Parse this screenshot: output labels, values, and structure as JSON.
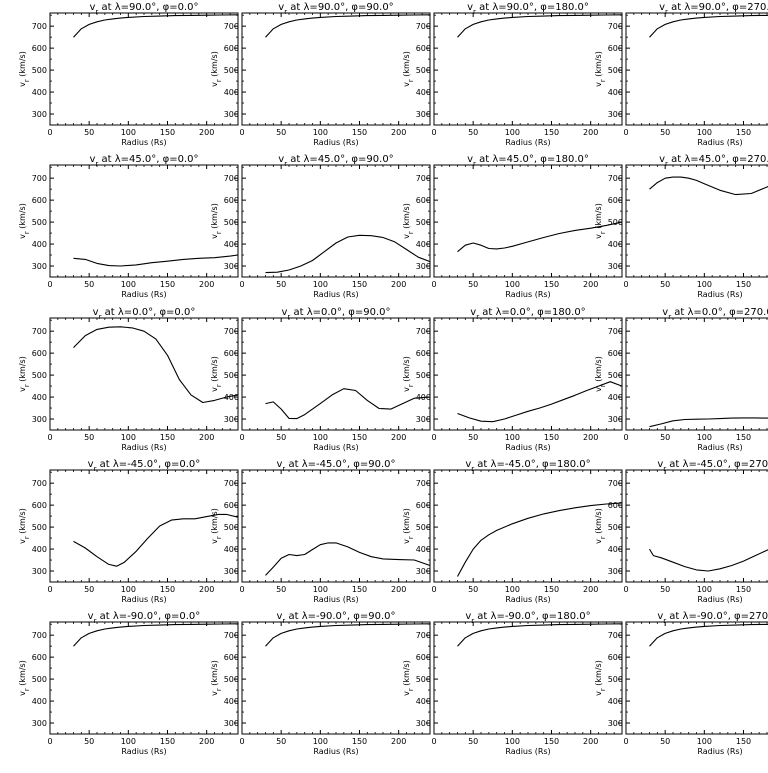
{
  "chart_data": [
    {
      "type": "line",
      "title_html": "v<tspan baseline-shift=\"sub\" font-size=\"7\">r</tspan> at λ=90.0°, φ=0.0°",
      "title": "v_r at λ=90.0°, φ=0.0°",
      "xlabel": "Radius (Rs)",
      "ylabel": "v_r (km/s)",
      "xlim": [
        0,
        240
      ],
      "ylim": [
        250,
        760
      ],
      "xticks": [
        0,
        50,
        100,
        150,
        200
      ],
      "yticks": [
        300,
        400,
        500,
        600,
        700
      ],
      "x": [
        30,
        40,
        50,
        60,
        70,
        80,
        90,
        100,
        120,
        140,
        160,
        180,
        200,
        220,
        240
      ],
      "y": [
        650,
        688,
        708,
        720,
        728,
        733,
        737,
        740,
        744,
        746,
        748,
        749,
        750,
        751,
        752
      ]
    },
    {
      "type": "line",
      "title": "v_r at λ=90.0°, φ=90.0°",
      "xlabel": "Radius (Rs)",
      "ylabel": "v_r (km/s)",
      "xlim": [
        0,
        240
      ],
      "ylim": [
        250,
        760
      ],
      "xticks": [
        0,
        50,
        100,
        150,
        200
      ],
      "yticks": [
        300,
        400,
        500,
        600,
        700
      ],
      "x": [
        30,
        40,
        50,
        60,
        70,
        80,
        90,
        100,
        120,
        140,
        160,
        180,
        200,
        220,
        240
      ],
      "y": [
        650,
        688,
        708,
        720,
        728,
        733,
        737,
        740,
        744,
        746,
        748,
        749,
        750,
        751,
        752
      ]
    },
    {
      "type": "line",
      "title": "v_r at λ=90.0°, φ=180.0°",
      "xlabel": "Radius (Rs)",
      "ylabel": "v_r (km/s)",
      "xlim": [
        0,
        240
      ],
      "ylim": [
        250,
        760
      ],
      "xticks": [
        0,
        50,
        100,
        150,
        200
      ],
      "yticks": [
        300,
        400,
        500,
        600,
        700
      ],
      "x": [
        30,
        40,
        50,
        60,
        70,
        80,
        90,
        100,
        120,
        140,
        160,
        180,
        200,
        220,
        240
      ],
      "y": [
        650,
        688,
        708,
        720,
        728,
        733,
        737,
        740,
        744,
        746,
        748,
        749,
        750,
        751,
        752
      ]
    },
    {
      "type": "line",
      "title": "v_r at λ=90.0°, φ=270.0°",
      "xlabel": "Radius (Rs)",
      "ylabel": "v_r (km/s)",
      "xlim": [
        0,
        240
      ],
      "ylim": [
        250,
        760
      ],
      "xticks": [
        0,
        50,
        100,
        150,
        200
      ],
      "yticks": [
        300,
        400,
        500,
        600,
        700
      ],
      "x": [
        30,
        40,
        50,
        60,
        70,
        80,
        90,
        100,
        120,
        140,
        160,
        180,
        200,
        220,
        240
      ],
      "y": [
        650,
        688,
        708,
        720,
        728,
        733,
        737,
        740,
        744,
        746,
        748,
        749,
        750,
        751,
        752
      ]
    },
    {
      "type": "line",
      "title": "v_r at λ=45.0°, φ=0.0°",
      "xlabel": "Radius (Rs)",
      "ylabel": "v_r (km/s)",
      "xlim": [
        0,
        240
      ],
      "ylim": [
        250,
        760
      ],
      "xticks": [
        0,
        50,
        100,
        150,
        200
      ],
      "yticks": [
        300,
        400,
        500,
        600,
        700
      ],
      "x": [
        30,
        45,
        60,
        75,
        90,
        110,
        130,
        150,
        170,
        190,
        210,
        230,
        240
      ],
      "y": [
        335,
        330,
        312,
        302,
        300,
        305,
        315,
        322,
        330,
        335,
        338,
        345,
        350
      ]
    },
    {
      "type": "line",
      "title": "v_r at λ=45.0°, φ=90.0°",
      "xlabel": "Radius (Rs)",
      "ylabel": "v_r (km/s)",
      "xlim": [
        0,
        240
      ],
      "ylim": [
        250,
        760
      ],
      "xticks": [
        0,
        50,
        100,
        150,
        200
      ],
      "yticks": [
        300,
        400,
        500,
        600,
        700
      ],
      "x": [
        30,
        45,
        60,
        75,
        90,
        105,
        120,
        135,
        150,
        165,
        180,
        195,
        210,
        225,
        240
      ],
      "y": [
        270,
        272,
        282,
        300,
        325,
        365,
        405,
        432,
        440,
        438,
        430,
        410,
        375,
        340,
        320
      ]
    },
    {
      "type": "line",
      "title": "v_r at λ=45.0°, φ=180.0°",
      "xlabel": "Radius (Rs)",
      "ylabel": "v_r (km/s)",
      "xlim": [
        0,
        240
      ],
      "ylim": [
        250,
        760
      ],
      "xticks": [
        0,
        50,
        100,
        150,
        200
      ],
      "yticks": [
        300,
        400,
        500,
        600,
        700
      ],
      "x": [
        30,
        40,
        50,
        60,
        70,
        80,
        90,
        100,
        120,
        140,
        160,
        180,
        200,
        220,
        240
      ],
      "y": [
        365,
        395,
        405,
        395,
        380,
        378,
        382,
        390,
        410,
        430,
        448,
        462,
        472,
        485,
        500
      ]
    },
    {
      "type": "line",
      "title": "v_r at λ=45.0°, φ=270.0°",
      "xlabel": "Radius (Rs)",
      "ylabel": "v_r (km/s)",
      "xlim": [
        0,
        240
      ],
      "ylim": [
        250,
        760
      ],
      "xticks": [
        0,
        50,
        100,
        150,
        200
      ],
      "yticks": [
        300,
        400,
        500,
        600,
        700
      ],
      "x": [
        30,
        40,
        50,
        60,
        70,
        80,
        90,
        100,
        120,
        140,
        160,
        180,
        200,
        220,
        240
      ],
      "y": [
        650,
        680,
        700,
        705,
        705,
        700,
        690,
        675,
        645,
        625,
        630,
        660,
        695,
        720,
        735
      ]
    },
    {
      "type": "line",
      "title": "v_r at λ=0.0°, φ=0.0°",
      "xlabel": "Radius (Rs)",
      "ylabel": "v_r (km/s)",
      "xlim": [
        0,
        240
      ],
      "ylim": [
        250,
        760
      ],
      "xticks": [
        0,
        50,
        100,
        150,
        200
      ],
      "yticks": [
        300,
        400,
        500,
        600,
        700
      ],
      "x": [
        30,
        45,
        60,
        75,
        90,
        105,
        120,
        135,
        150,
        165,
        180,
        195,
        210,
        225,
        240
      ],
      "y": [
        625,
        680,
        708,
        718,
        720,
        715,
        700,
        665,
        590,
        480,
        410,
        375,
        385,
        400,
        410
      ]
    },
    {
      "type": "line",
      "title": "v_r at λ=0.0°, φ=90.0°",
      "xlabel": "Radius (Rs)",
      "ylabel": "v_r (km/s)",
      "xlim": [
        0,
        240
      ],
      "ylim": [
        250,
        760
      ],
      "xticks": [
        0,
        50,
        100,
        150,
        200
      ],
      "yticks": [
        300,
        400,
        500,
        600,
        700
      ],
      "x": [
        30,
        40,
        50,
        60,
        70,
        80,
        90,
        100,
        115,
        130,
        145,
        160,
        175,
        190,
        205,
        220,
        240
      ],
      "y": [
        370,
        378,
        345,
        303,
        302,
        320,
        345,
        370,
        410,
        438,
        430,
        385,
        348,
        345,
        370,
        395,
        400
      ]
    },
    {
      "type": "line",
      "title": "v_r at λ=0.0°, φ=180.0°",
      "xlabel": "Radius (Rs)",
      "ylabel": "v_r (km/s)",
      "xlim": [
        0,
        240
      ],
      "ylim": [
        250,
        760
      ],
      "xticks": [
        0,
        50,
        100,
        150,
        200
      ],
      "yticks": [
        300,
        400,
        500,
        600,
        700
      ],
      "x": [
        30,
        45,
        60,
        75,
        90,
        105,
        120,
        135,
        150,
        165,
        180,
        195,
        210,
        225,
        240
      ],
      "y": [
        325,
        305,
        290,
        288,
        300,
        318,
        335,
        350,
        368,
        388,
        408,
        430,
        450,
        470,
        450
      ]
    },
    {
      "type": "line",
      "title": "v_r at λ=0.0°, φ=270.0°",
      "xlabel": "Radius (Rs)",
      "ylabel": "v_r (km/s)",
      "xlim": [
        0,
        240
      ],
      "ylim": [
        250,
        760
      ],
      "xticks": [
        0,
        50,
        100,
        150,
        200
      ],
      "yticks": [
        300,
        400,
        500,
        600,
        700
      ],
      "x": [
        30,
        45,
        60,
        75,
        90,
        105,
        120,
        135,
        150,
        165,
        180,
        195,
        210,
        225,
        240
      ],
      "y": [
        265,
        278,
        292,
        298,
        299,
        300,
        302,
        304,
        305,
        305,
        304,
        305,
        310,
        318,
        330
      ]
    },
    {
      "type": "line",
      "title": "v_r at λ=-45.0°, φ=0.0°",
      "xlabel": "Radius (Rs)",
      "ylabel": "v_r (km/s)",
      "xlim": [
        0,
        240
      ],
      "ylim": [
        250,
        760
      ],
      "xticks": [
        0,
        50,
        100,
        150,
        200
      ],
      "yticks": [
        300,
        400,
        500,
        600,
        700
      ],
      "x": [
        30,
        45,
        60,
        75,
        85,
        95,
        110,
        125,
        140,
        155,
        170,
        185,
        200,
        215,
        225,
        240
      ],
      "y": [
        435,
        405,
        365,
        330,
        322,
        340,
        390,
        450,
        505,
        532,
        538,
        538,
        548,
        558,
        558,
        545
      ]
    },
    {
      "type": "line",
      "title": "v_r at λ=-45.0°, φ=90.0°",
      "xlabel": "Radius (Rs)",
      "ylabel": "v_r (km/s)",
      "xlim": [
        0,
        240
      ],
      "ylim": [
        250,
        760
      ],
      "xticks": [
        0,
        50,
        100,
        150,
        200
      ],
      "yticks": [
        300,
        400,
        500,
        600,
        700
      ],
      "x": [
        30,
        40,
        50,
        60,
        70,
        80,
        90,
        100,
        110,
        120,
        135,
        150,
        165,
        180,
        200,
        220,
        240
      ],
      "y": [
        280,
        318,
        358,
        375,
        370,
        375,
        398,
        420,
        428,
        428,
        410,
        385,
        365,
        355,
        352,
        350,
        325
      ]
    },
    {
      "type": "line",
      "title": "v_r at λ=-45.0°, φ=180.0°",
      "xlabel": "Radius (Rs)",
      "ylabel": "v_r (km/s)",
      "xlim": [
        0,
        240
      ],
      "ylim": [
        250,
        760
      ],
      "xticks": [
        0,
        50,
        100,
        150,
        200
      ],
      "yticks": [
        300,
        400,
        500,
        600,
        700
      ],
      "x": [
        30,
        40,
        50,
        60,
        70,
        80,
        100,
        120,
        140,
        160,
        180,
        200,
        220,
        240
      ],
      "y": [
        275,
        340,
        400,
        440,
        465,
        485,
        515,
        540,
        560,
        575,
        588,
        598,
        605,
        610
      ]
    },
    {
      "type": "line",
      "title": "v_r at λ=-45.0°, φ=270.0°",
      "xlabel": "Radius (Rs)",
      "ylabel": "v_r (km/s)",
      "xlim": [
        0,
        240
      ],
      "ylim": [
        250,
        760
      ],
      "xticks": [
        0,
        50,
        100,
        150,
        200
      ],
      "yticks": [
        300,
        400,
        500,
        600,
        700
      ],
      "x": [
        30,
        35,
        45,
        60,
        75,
        90,
        105,
        120,
        135,
        150,
        165,
        180,
        200,
        220,
        240
      ],
      "y": [
        400,
        370,
        360,
        340,
        320,
        305,
        300,
        310,
        325,
        345,
        370,
        395,
        430,
        460,
        490
      ]
    },
    {
      "type": "line",
      "title": "v_r at λ=-90.0°, φ=0.0°",
      "xlabel": "Radius (Rs)",
      "ylabel": "v_r (km/s)",
      "xlim": [
        0,
        240
      ],
      "ylim": [
        250,
        760
      ],
      "xticks": [
        0,
        50,
        100,
        150,
        200
      ],
      "yticks": [
        300,
        400,
        500,
        600,
        700
      ],
      "x": [
        30,
        40,
        50,
        60,
        70,
        80,
        90,
        100,
        120,
        140,
        160,
        180,
        200,
        220,
        240
      ],
      "y": [
        650,
        688,
        708,
        720,
        728,
        733,
        737,
        740,
        744,
        746,
        748,
        749,
        750,
        751,
        752
      ]
    },
    {
      "type": "line",
      "title": "v_r at λ=-90.0°, φ=90.0°",
      "xlabel": "Radius (Rs)",
      "ylabel": "v_r (km/s)",
      "xlim": [
        0,
        240
      ],
      "ylim": [
        250,
        760
      ],
      "xticks": [
        0,
        50,
        100,
        150,
        200
      ],
      "yticks": [
        300,
        400,
        500,
        600,
        700
      ],
      "x": [
        30,
        40,
        50,
        60,
        70,
        80,
        90,
        100,
        120,
        140,
        160,
        180,
        200,
        220,
        240
      ],
      "y": [
        650,
        688,
        708,
        720,
        728,
        733,
        737,
        740,
        744,
        746,
        748,
        749,
        750,
        751,
        752
      ]
    },
    {
      "type": "line",
      "title": "v_r at λ=-90.0°, φ=180.0°",
      "xlabel": "Radius (Rs)",
      "ylabel": "v_r (km/s)",
      "xlim": [
        0,
        240
      ],
      "ylim": [
        250,
        760
      ],
      "xticks": [
        0,
        50,
        100,
        150,
        200
      ],
      "yticks": [
        300,
        400,
        500,
        600,
        700
      ],
      "x": [
        30,
        40,
        50,
        60,
        70,
        80,
        90,
        100,
        120,
        140,
        160,
        180,
        200,
        220,
        240
      ],
      "y": [
        650,
        688,
        708,
        720,
        728,
        733,
        737,
        740,
        744,
        746,
        748,
        749,
        750,
        751,
        752
      ]
    },
    {
      "type": "line",
      "title": "v_r at λ=-90.0°, φ=270.0°",
      "xlabel": "Radius (Rs)",
      "ylabel": "v_r (km/s)",
      "xlim": [
        0,
        240
      ],
      "ylim": [
        250,
        760
      ],
      "xticks": [
        0,
        50,
        100,
        150,
        200
      ],
      "yticks": [
        300,
        400,
        500,
        600,
        700
      ],
      "x": [
        30,
        40,
        50,
        60,
        70,
        80,
        90,
        100,
        120,
        140,
        160,
        180,
        200,
        220,
        240
      ],
      "y": [
        650,
        688,
        708,
        720,
        728,
        733,
        737,
        740,
        744,
        746,
        748,
        749,
        750,
        751,
        752
      ]
    }
  ]
}
